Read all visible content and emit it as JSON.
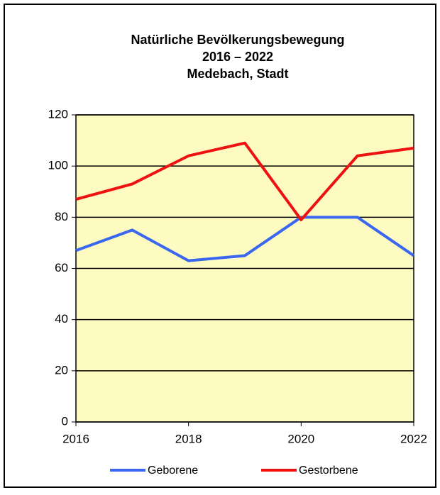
{
  "chart_data": {
    "type": "line",
    "title": [
      "Natürliche Bevölkerungsbewegung",
      "2016 – 2022",
      "Medebach, Stadt"
    ],
    "x": [
      2016,
      2017,
      2018,
      2019,
      2020,
      2021,
      2022
    ],
    "xlim": [
      2016,
      2022
    ],
    "xticks": [
      2016,
      2018,
      2020,
      2022
    ],
    "ylim": [
      0,
      120
    ],
    "yticks": [
      0,
      20,
      40,
      60,
      80,
      100,
      120
    ],
    "grid": true,
    "legend": "bottom",
    "series": [
      {
        "name": "Geborene",
        "color": "#3a66f0",
        "values": [
          67,
          75,
          63,
          65,
          80,
          80,
          65
        ]
      },
      {
        "name": "Gestorbene",
        "color": "#ee1111",
        "values": [
          87,
          93,
          104,
          109,
          79,
          104,
          107
        ]
      }
    ]
  }
}
